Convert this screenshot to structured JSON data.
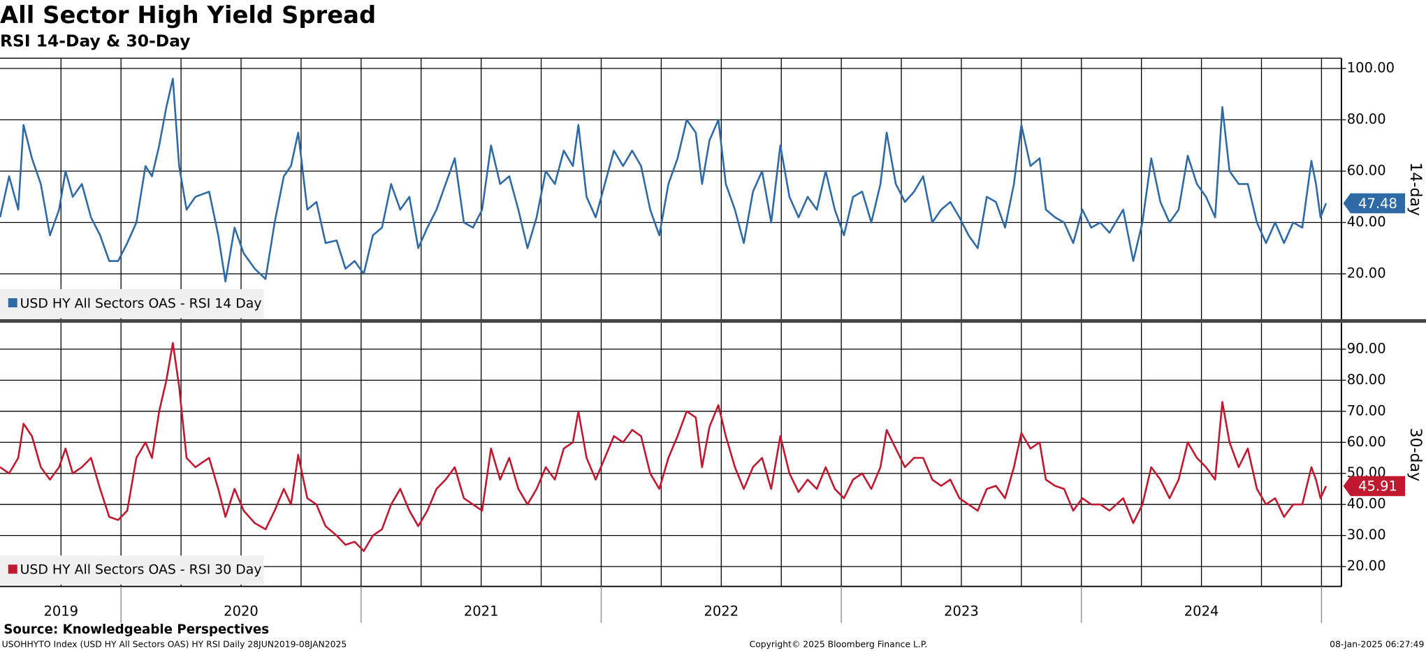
{
  "header": {
    "title": "All Sector High Yield Spread",
    "subtitle": "RSI 14-Day & 30-Day"
  },
  "footer": {
    "source": "Source: Knowledgeable Perspectives",
    "description": "USOHHYTO Index (USD HY All Sectors OAS) HY RSI  Daily 28JUN2019-08JAN2025",
    "copyright": "Copyright© 2025 Bloomberg Finance L.P.",
    "timestamp": "08-Jan-2025 06:27:49"
  },
  "chart_data": [
    {
      "type": "line",
      "y_label": "14-day",
      "legend_corner": "lower-left",
      "grid": true,
      "xlim": [
        2019.496,
        2025.083
      ],
      "ylim": [
        2,
        104
      ],
      "xgrid": [
        2019.75,
        2020,
        2020.25,
        2020.5,
        2020.75,
        2021,
        2021.25,
        2021.5,
        2021.75,
        2022,
        2022.25,
        2022.5,
        2022.75,
        2023,
        2023.25,
        2023.5,
        2023.75,
        2024,
        2024.25,
        2024.5,
        2024.75,
        2025
      ],
      "yticks": [
        {
          "value": 20,
          "label": "20.00"
        },
        {
          "value": 40,
          "label": "40.00"
        },
        {
          "value": 60,
          "label": "60.00"
        },
        {
          "value": 80,
          "label": "80.00"
        },
        {
          "value": 100,
          "label": "100.00"
        }
      ],
      "x": [
        2019.496,
        2019.534,
        2019.572,
        2019.594,
        2019.629,
        2019.666,
        2019.704,
        2019.742,
        2019.769,
        2019.799,
        2019.837,
        2019.875,
        2019.913,
        2019.951,
        2019.988,
        2020.026,
        2020.064,
        2020.102,
        2020.129,
        2020.159,
        2020.189,
        2020.216,
        2020.242,
        2020.273,
        2020.31,
        2020.367,
        2020.405,
        2020.435,
        2020.473,
        2020.511,
        2020.557,
        2020.602,
        2020.64,
        2020.678,
        2020.708,
        2020.738,
        2020.776,
        2020.814,
        2020.852,
        2020.898,
        2020.935,
        2020.973,
        2021.011,
        2021.049,
        2021.087,
        2021.125,
        2021.163,
        2021.201,
        2021.238,
        2021.276,
        2021.314,
        2021.352,
        2021.39,
        2021.428,
        2021.466,
        2021.504,
        2021.541,
        2021.579,
        2021.617,
        2021.655,
        2021.693,
        2021.731,
        2021.769,
        2021.807,
        2021.844,
        2021.882,
        2021.905,
        2021.939,
        2021.977,
        2022.015,
        2022.053,
        2022.091,
        2022.129,
        2022.166,
        2022.204,
        2022.242,
        2022.28,
        2022.318,
        2022.356,
        2022.394,
        2022.42,
        2022.451,
        2022.488,
        2022.519,
        2022.557,
        2022.594,
        2022.632,
        2022.67,
        2022.708,
        2022.746,
        2022.784,
        2022.822,
        2022.86,
        2022.898,
        2022.935,
        2022.973,
        2023.011,
        2023.049,
        2023.087,
        2023.125,
        2023.163,
        2023.189,
        2023.227,
        2023.265,
        2023.303,
        2023.341,
        2023.379,
        2023.416,
        2023.454,
        2023.492,
        2023.53,
        2023.568,
        2023.606,
        2023.644,
        2023.682,
        2023.719,
        2023.75,
        2023.788,
        2023.826,
        2023.852,
        2023.89,
        2023.928,
        2023.966,
        2024.004,
        2024.041,
        2024.079,
        2024.117,
        2024.174,
        2024.216,
        2024.254,
        2024.291,
        2024.329,
        2024.367,
        2024.405,
        2024.443,
        2024.481,
        2024.519,
        2024.557,
        2024.587,
        2024.617,
        2024.655,
        2024.693,
        2024.731,
        2024.769,
        2024.807,
        2024.844,
        2024.882,
        2024.92,
        2024.958,
        2024.977,
        2024.996,
        2025.019
      ],
      "series": [
        {
          "name": "USD HY All Sectors OAS - RSI 14 Day",
          "color": "#2e6aa6",
          "values": [
            42,
            58,
            45,
            78,
            65,
            55,
            35,
            45,
            60,
            50,
            55,
            42,
            35,
            25,
            25,
            32,
            40,
            62,
            58,
            70,
            85,
            96,
            62,
            45,
            50,
            52,
            35,
            17,
            38,
            28,
            22,
            18,
            40,
            58,
            62,
            75,
            45,
            48,
            32,
            33,
            22,
            25,
            20,
            35,
            38,
            55,
            45,
            50,
            30,
            38,
            45,
            55,
            65,
            40,
            38,
            45,
            70,
            55,
            58,
            45,
            30,
            42,
            60,
            55,
            68,
            62,
            78,
            50,
            42,
            55,
            68,
            62,
            68,
            62,
            45,
            35,
            55,
            65,
            80,
            75,
            55,
            72,
            80,
            55,
            45,
            32,
            52,
            60,
            40,
            70,
            50,
            42,
            50,
            45,
            60,
            45,
            35,
            50,
            52,
            40,
            55,
            75,
            55,
            48,
            52,
            58,
            40,
            45,
            48,
            42,
            35,
            30,
            50,
            48,
            38,
            55,
            78,
            62,
            65,
            45,
            42,
            40,
            32,
            45,
            38,
            40,
            36,
            45,
            25,
            40,
            65,
            48,
            40,
            45,
            66,
            55,
            50,
            42,
            85,
            60,
            55,
            55,
            40,
            32,
            40,
            32,
            40,
            38,
            64,
            55,
            42,
            47.48
          ]
        }
      ]
    },
    {
      "type": "line",
      "y_label": "30-day",
      "legend_corner": "lower-left",
      "grid": true,
      "xlim": [
        2019.496,
        2025.083
      ],
      "ylim": [
        13.6,
        98.5
      ],
      "xgrid": [
        2019.75,
        2020,
        2020.25,
        2020.5,
        2020.75,
        2021,
        2021.25,
        2021.5,
        2021.75,
        2022,
        2022.25,
        2022.5,
        2022.75,
        2023,
        2023.25,
        2023.5,
        2023.75,
        2024,
        2024.25,
        2024.5,
        2024.75,
        2025
      ],
      "xticks": [
        {
          "value": 2019.75,
          "label": "2019"
        },
        {
          "value": 2020.5,
          "label": "2020"
        },
        {
          "value": 2021.5,
          "label": "2021"
        },
        {
          "value": 2022.5,
          "label": "2022"
        },
        {
          "value": 2023.5,
          "label": "2023"
        },
        {
          "value": 2024.5,
          "label": "2024"
        }
      ],
      "yticks": [
        {
          "value": 20,
          "label": "20.00"
        },
        {
          "value": 30,
          "label": "30.00"
        },
        {
          "value": 40,
          "label": "40.00"
        },
        {
          "value": 50,
          "label": "50.00"
        },
        {
          "value": 60,
          "label": "60.00"
        },
        {
          "value": 70,
          "label": "70.00"
        },
        {
          "value": 80,
          "label": "80.00"
        },
        {
          "value": 90,
          "label": "90.00"
        }
      ],
      "x": [
        2019.496,
        2019.534,
        2019.572,
        2019.594,
        2019.629,
        2019.666,
        2019.704,
        2019.742,
        2019.769,
        2019.799,
        2019.837,
        2019.875,
        2019.913,
        2019.951,
        2019.988,
        2020.026,
        2020.064,
        2020.102,
        2020.129,
        2020.159,
        2020.189,
        2020.216,
        2020.242,
        2020.273,
        2020.31,
        2020.367,
        2020.405,
        2020.435,
        2020.473,
        2020.511,
        2020.557,
        2020.602,
        2020.64,
        2020.678,
        2020.708,
        2020.738,
        2020.776,
        2020.814,
        2020.852,
        2020.898,
        2020.935,
        2020.973,
        2021.011,
        2021.049,
        2021.087,
        2021.125,
        2021.163,
        2021.201,
        2021.238,
        2021.276,
        2021.314,
        2021.352,
        2021.39,
        2021.428,
        2021.466,
        2021.504,
        2021.541,
        2021.579,
        2021.617,
        2021.655,
        2021.693,
        2021.731,
        2021.769,
        2021.807,
        2021.844,
        2021.882,
        2021.905,
        2021.939,
        2021.977,
        2022.015,
        2022.053,
        2022.091,
        2022.129,
        2022.166,
        2022.204,
        2022.242,
        2022.28,
        2022.318,
        2022.356,
        2022.394,
        2022.42,
        2022.451,
        2022.488,
        2022.519,
        2022.557,
        2022.594,
        2022.632,
        2022.67,
        2022.708,
        2022.746,
        2022.784,
        2022.822,
        2022.86,
        2022.898,
        2022.935,
        2022.973,
        2023.011,
        2023.049,
        2023.087,
        2023.125,
        2023.163,
        2023.189,
        2023.227,
        2023.265,
        2023.303,
        2023.341,
        2023.379,
        2023.416,
        2023.454,
        2023.492,
        2023.53,
        2023.568,
        2023.606,
        2023.644,
        2023.682,
        2023.719,
        2023.75,
        2023.788,
        2023.826,
        2023.852,
        2023.89,
        2023.928,
        2023.966,
        2024.004,
        2024.041,
        2024.079,
        2024.117,
        2024.174,
        2024.216,
        2024.254,
        2024.291,
        2024.329,
        2024.367,
        2024.405,
        2024.443,
        2024.481,
        2024.519,
        2024.557,
        2024.587,
        2024.617,
        2024.655,
        2024.693,
        2024.731,
        2024.769,
        2024.807,
        2024.844,
        2024.882,
        2024.92,
        2024.958,
        2024.977,
        2024.996,
        2025.019
      ],
      "series": [
        {
          "name": "USD HY All Sectors OAS - RSI 30 Day",
          "color": "#c0182f",
          "values": [
            52,
            50,
            55,
            66,
            62,
            52,
            48,
            52,
            58,
            50,
            52,
            55,
            45,
            36,
            35,
            38,
            55,
            60,
            55,
            70,
            80,
            92,
            78,
            55,
            52,
            55,
            45,
            36,
            45,
            38,
            34,
            32,
            38,
            45,
            40,
            56,
            42,
            40,
            33,
            30,
            27,
            28,
            25,
            30,
            32,
            40,
            45,
            38,
            33,
            38,
            45,
            48,
            52,
            42,
            40,
            38,
            58,
            48,
            55,
            45,
            40,
            45,
            52,
            48,
            58,
            60,
            70,
            55,
            48,
            55,
            62,
            60,
            64,
            62,
            50,
            45,
            55,
            62,
            70,
            68,
            52,
            65,
            72,
            62,
            52,
            45,
            52,
            55,
            45,
            62,
            50,
            44,
            48,
            45,
            52,
            45,
            42,
            48,
            50,
            45,
            52,
            64,
            58,
            52,
            55,
            55,
            48,
            46,
            48,
            42,
            40,
            38,
            45,
            46,
            42,
            52,
            63,
            58,
            60,
            48,
            46,
            45,
            38,
            42,
            40,
            40,
            38,
            42,
            34,
            40,
            52,
            48,
            42,
            48,
            60,
            55,
            52,
            48,
            73,
            60,
            52,
            58,
            45,
            40,
            42,
            36,
            40,
            40,
            52,
            48,
            42,
            45.91
          ]
        }
      ]
    }
  ]
}
